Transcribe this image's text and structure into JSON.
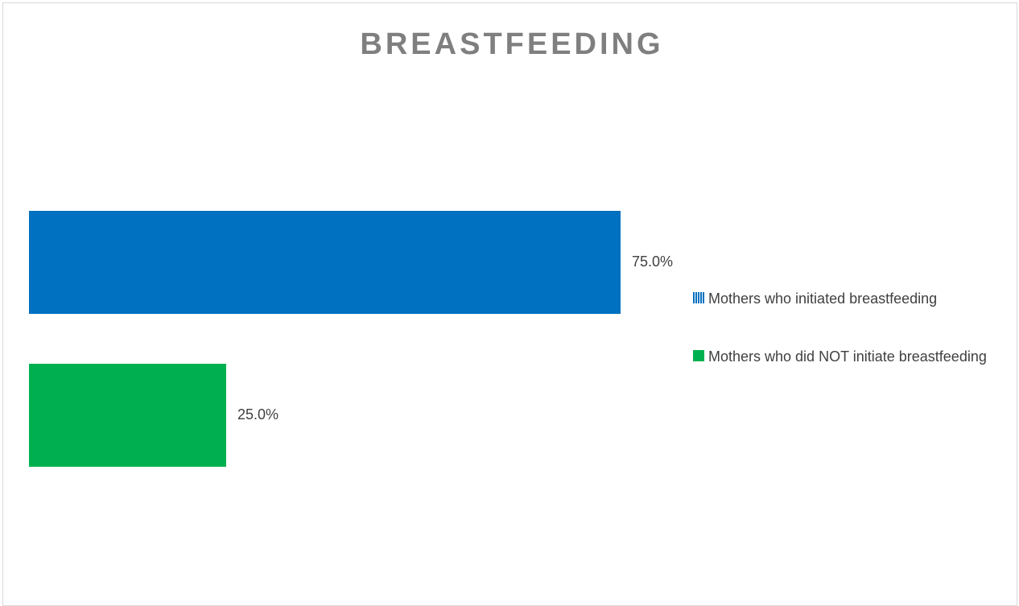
{
  "chart_data": {
    "type": "bar",
    "orientation": "horizontal",
    "title": "BREASTFEEDING",
    "categories": [
      null
    ],
    "series": [
      {
        "name": "Mothers who initiated breastfeeding",
        "color": "#0070c0",
        "values": [
          75
        ],
        "value_labels": [
          "75.0%"
        ]
      },
      {
        "name": "Mothers who did NOT initiate breastfeeding",
        "color": "#00b050",
        "values": [
          25
        ],
        "value_labels": [
          "25.0%"
        ]
      }
    ],
    "xlim": [
      0,
      100
    ],
    "grid": false,
    "legend": "right"
  }
}
